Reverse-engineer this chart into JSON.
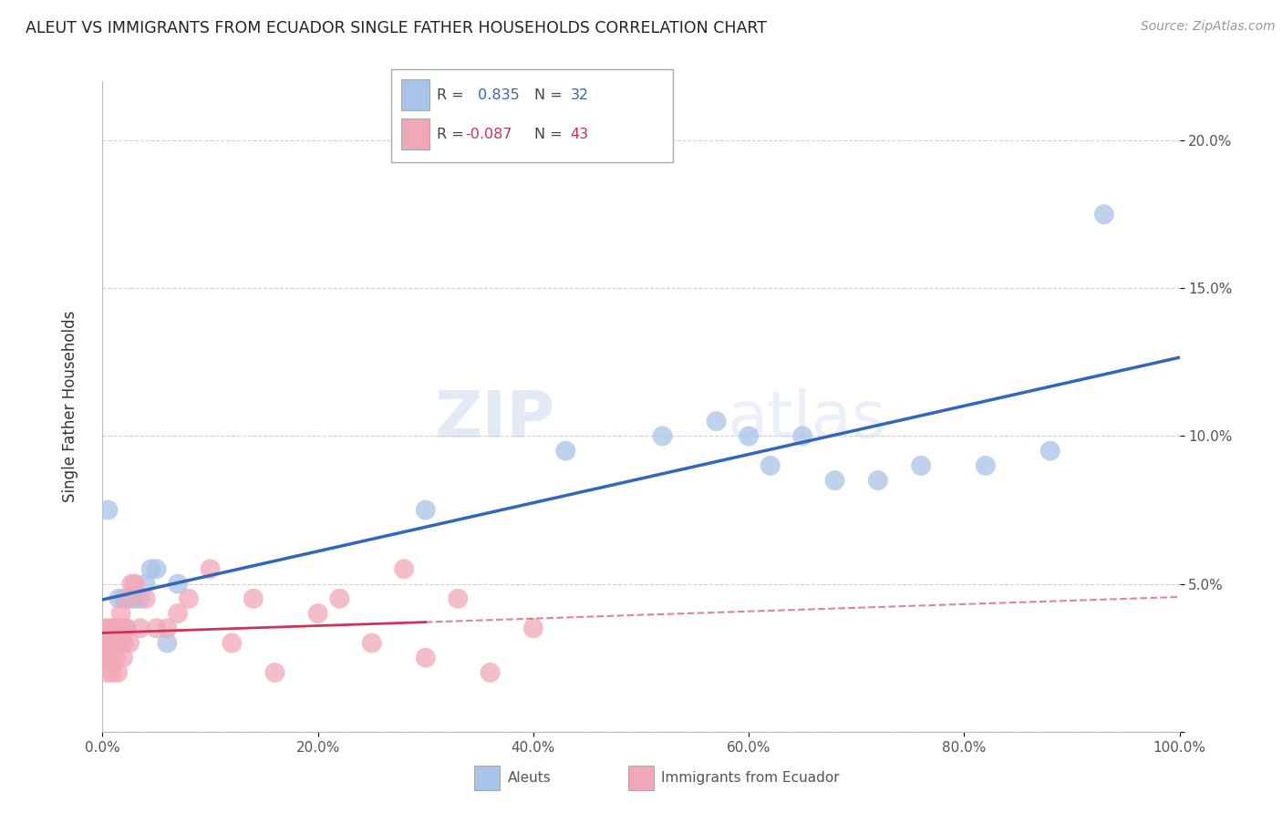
{
  "title": "ALEUT VS IMMIGRANTS FROM ECUADOR SINGLE FATHER HOUSEHOLDS CORRELATION CHART",
  "source": "Source: ZipAtlas.com",
  "ylabel": "Single Father Households",
  "x_ticklabels": [
    "0.0%",
    "20.0%",
    "40.0%",
    "60.0%",
    "80.0%",
    "100.0%"
  ],
  "x_ticks": [
    0,
    20,
    40,
    60,
    80,
    100
  ],
  "y_ticklabels": [
    "20.0%",
    "15.0%",
    "10.0%",
    "5.0%",
    ""
  ],
  "y_ticks": [
    20,
    15,
    10,
    5,
    0
  ],
  "aleut_color": "#a8c4e8",
  "ecuador_color": "#f0a8b8",
  "aleut_line_color": "#3366bb",
  "ecuador_line_color": "#cc3355",
  "watermark_zip": "ZIP",
  "watermark_atlas": "atlas",
  "aleut_x": [
    0.5,
    1.0,
    1.2,
    1.5,
    2.0,
    2.5,
    3.0,
    3.5,
    4.0,
    4.5,
    5.0,
    6.0,
    7.0,
    30.0,
    43.0,
    52.0,
    57.0,
    60.0,
    62.0,
    65.0,
    68.0,
    72.0,
    76.0,
    82.0,
    88.0,
    93.0
  ],
  "aleut_y": [
    7.5,
    3.5,
    3.0,
    4.5,
    4.5,
    4.5,
    4.5,
    4.5,
    5.0,
    5.5,
    5.5,
    3.0,
    5.0,
    7.5,
    9.5,
    10.0,
    10.5,
    10.0,
    9.0,
    10.0,
    8.5,
    8.5,
    9.0,
    9.0,
    9.5,
    17.5
  ],
  "ecuador_x": [
    0.2,
    0.3,
    0.4,
    0.5,
    0.6,
    0.7,
    0.8,
    0.9,
    1.0,
    1.1,
    1.2,
    1.3,
    1.4,
    1.5,
    1.6,
    1.7,
    1.8,
    1.9,
    2.0,
    2.1,
    2.2,
    2.3,
    2.5,
    2.7,
    3.0,
    3.5,
    4.0,
    5.0,
    6.0,
    7.0,
    8.0,
    10.0,
    12.0,
    14.0,
    16.0,
    20.0,
    22.0,
    25.0,
    28.0,
    30.0,
    33.0,
    36.0,
    40.0
  ],
  "ecuador_y": [
    3.5,
    2.5,
    2.0,
    3.0,
    3.5,
    2.5,
    3.0,
    2.0,
    3.0,
    3.5,
    2.5,
    3.0,
    2.0,
    3.5,
    3.0,
    4.0,
    3.5,
    2.5,
    3.0,
    3.5,
    3.5,
    4.5,
    3.0,
    5.0,
    5.0,
    3.5,
    4.5,
    3.5,
    3.5,
    4.0,
    4.5,
    5.5,
    3.0,
    4.5,
    2.0,
    4.0,
    4.5,
    3.0,
    5.5,
    2.5,
    4.5,
    2.0,
    3.5
  ],
  "ylim": [
    0,
    22
  ],
  "xlim": [
    0,
    100
  ]
}
